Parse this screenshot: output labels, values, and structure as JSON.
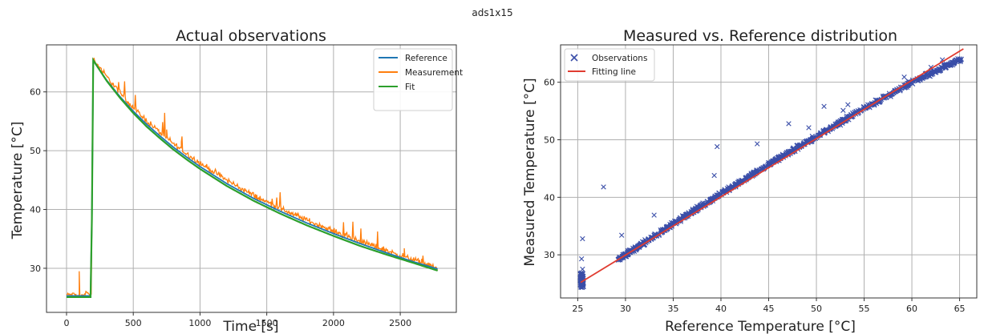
{
  "figure": {
    "suptitle": "ads1x15"
  },
  "chart_data": [
    {
      "type": "line",
      "title": "Actual observations",
      "xlabel": "Time [s]",
      "ylabel": "Temperature [°C]",
      "xlim": [
        -150,
        2920
      ],
      "ylim": [
        22.5,
        68
      ],
      "xticks": [
        0,
        500,
        1000,
        1500,
        2000,
        2500
      ],
      "yticks": [
        30,
        40,
        50,
        60
      ],
      "grid": true,
      "legend_position": "top-right",
      "step_time_s": 190,
      "end_time_s": 2780,
      "series": [
        {
          "name": "Reference",
          "color": "#1f77b4",
          "points": [
            [
              0,
              25.3
            ],
            [
              185,
              25.3
            ],
            [
              200,
              65.3
            ],
            [
              300,
              62.0
            ],
            [
              400,
              59.2
            ],
            [
              500,
              56.7
            ],
            [
              600,
              54.5
            ],
            [
              700,
              52.5
            ],
            [
              800,
              50.6
            ],
            [
              900,
              48.9
            ],
            [
              1000,
              47.3
            ],
            [
              1200,
              44.4
            ],
            [
              1400,
              41.9
            ],
            [
              1600,
              39.7
            ],
            [
              1800,
              37.7
            ],
            [
              2000,
              35.9
            ],
            [
              2200,
              34.2
            ],
            [
              2400,
              32.6
            ],
            [
              2600,
              31.1
            ],
            [
              2780,
              29.9
            ]
          ]
        },
        {
          "name": "Measurement",
          "color": "#ff7f0e",
          "points": [
            [
              0,
              25.5
            ],
            [
              60,
              25.6
            ],
            [
              100,
              25.1
            ],
            [
              150,
              25.9
            ],
            [
              185,
              25.4
            ],
            [
              200,
              65.6
            ],
            [
              300,
              62.6
            ],
            [
              400,
              59.9
            ],
            [
              500,
              57.3
            ],
            [
              600,
              55.1
            ],
            [
              700,
              53.1
            ],
            [
              800,
              51.2
            ],
            [
              900,
              49.5
            ],
            [
              1000,
              47.9
            ],
            [
              1200,
              45.0
            ],
            [
              1400,
              42.4
            ],
            [
              1600,
              40.2
            ],
            [
              1800,
              38.2
            ],
            [
              2000,
              36.3
            ],
            [
              2200,
              34.6
            ],
            [
              2400,
              33.0
            ],
            [
              2600,
              31.4
            ],
            [
              2780,
              30.0
            ]
          ],
          "spikes": [
            [
              95,
              29.5
            ],
            [
              750,
              53.6
            ],
            [
              860,
              51.5
            ],
            [
              1030,
              47.3
            ],
            [
              2530,
              33.4
            ],
            [
              2660,
              31.6
            ]
          ]
        },
        {
          "name": "Fit",
          "color": "#2ca02c",
          "points": [
            [
              0,
              25.1
            ],
            [
              185,
              25.1
            ],
            [
              200,
              65.4
            ],
            [
              300,
              61.9
            ],
            [
              400,
              59.0
            ],
            [
              500,
              56.4
            ],
            [
              600,
              54.1
            ],
            [
              700,
              52.1
            ],
            [
              800,
              50.2
            ],
            [
              900,
              48.5
            ],
            [
              1000,
              46.9
            ],
            [
              1200,
              44.0
            ],
            [
              1400,
              41.5
            ],
            [
              1600,
              39.3
            ],
            [
              1800,
              37.3
            ],
            [
              2000,
              35.5
            ],
            [
              2200,
              33.8
            ],
            [
              2400,
              32.3
            ],
            [
              2600,
              30.9
            ],
            [
              2780,
              29.6
            ]
          ]
        }
      ]
    },
    {
      "type": "scatter",
      "title": "Measured vs. Reference distribution",
      "xlabel": "Reference Temperature [°C]",
      "ylabel": "Measured Temperature [°C]",
      "xlim": [
        23.2,
        66.8
      ],
      "ylim": [
        22.5,
        66.5
      ],
      "xticks": [
        25,
        30,
        35,
        40,
        45,
        50,
        55,
        60,
        65
      ],
      "yticks": [
        30,
        40,
        50,
        60
      ],
      "grid": true,
      "legend_position": "top-left",
      "series": [
        {
          "name": "Observations",
          "color": "#3a4ea8",
          "marker": "x",
          "trend": [
            [
              29.3,
              29.2
            ],
            [
              35,
              35.4
            ],
            [
              40,
              40.6
            ],
            [
              45,
              45.7
            ],
            [
              50,
              50.6
            ],
            [
              55,
              55.4
            ],
            [
              60,
              60.0
            ],
            [
              65,
              63.9
            ]
          ],
          "cluster_low": [
            [
              25.3,
              24.8
            ],
            [
              25.4,
              26.0
            ],
            [
              25.5,
              27.5
            ]
          ],
          "outliers": [
            [
              25.4,
              29.3
            ],
            [
              25.5,
              32.8
            ],
            [
              27.7,
              41.8
            ],
            [
              29.6,
              33.4
            ],
            [
              33.0,
              36.9
            ],
            [
              39.6,
              48.8
            ],
            [
              39.3,
              43.8
            ],
            [
              43.8,
              49.3
            ],
            [
              47.1,
              52.8
            ],
            [
              49.2,
              52.1
            ],
            [
              50.8,
              55.8
            ],
            [
              52.8,
              55.1
            ],
            [
              53.3,
              56.1
            ],
            [
              59.2,
              60.9
            ],
            [
              62.0,
              62.6
            ],
            [
              63.2,
              63.9
            ]
          ]
        },
        {
          "name": "Fitting line",
          "color": "#e03c31",
          "points": [
            [
              25.3,
              25.2
            ],
            [
              65.4,
              65.8
            ]
          ]
        }
      ]
    }
  ]
}
